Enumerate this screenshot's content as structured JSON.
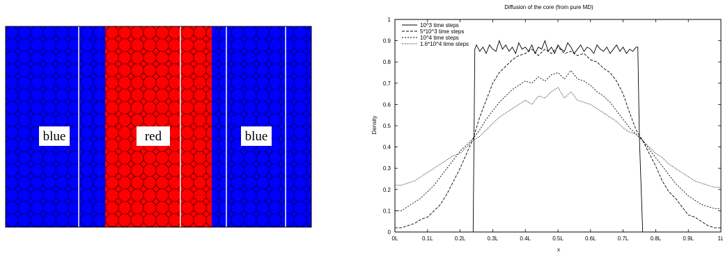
{
  "left_figure": {
    "regions": [
      {
        "label": "blue",
        "color": "#0000ff"
      },
      {
        "label": "red",
        "color": "#ff0000"
      },
      {
        "label": "blue",
        "color": "#0000ff"
      }
    ]
  },
  "chart_data": {
    "type": "line",
    "title": "Diffusion of the core (from pure MD)",
    "xlabel": "x",
    "ylabel": "Density",
    "xlim": [
      0,
      1
    ],
    "ylim": [
      0,
      1
    ],
    "x_ticks": [
      "0L",
      "0.1L",
      "0.2L",
      "0.3L",
      "0.4L",
      "0.5L",
      "0.6L",
      "0.7L",
      "0.8L",
      "0.9L",
      "1L"
    ],
    "y_ticks": [
      "0",
      "0.1",
      "0.2",
      "0.3",
      "0.4",
      "0.5",
      "0.6",
      "0.7",
      "0.8",
      "0.9",
      "1"
    ],
    "grid": false,
    "legend_position": "top-left",
    "series": [
      {
        "name": "10^3 time steps",
        "style": "solid",
        "x": [
          0,
          0.24,
          0.245,
          0.25,
          0.26,
          0.27,
          0.28,
          0.29,
          0.3,
          0.31,
          0.32,
          0.33,
          0.34,
          0.35,
          0.36,
          0.37,
          0.38,
          0.39,
          0.4,
          0.41,
          0.42,
          0.43,
          0.44,
          0.45,
          0.46,
          0.47,
          0.48,
          0.49,
          0.5,
          0.51,
          0.52,
          0.53,
          0.54,
          0.55,
          0.56,
          0.57,
          0.58,
          0.59,
          0.6,
          0.61,
          0.62,
          0.63,
          0.64,
          0.65,
          0.66,
          0.67,
          0.68,
          0.69,
          0.7,
          0.71,
          0.72,
          0.73,
          0.74,
          0.745,
          0.75,
          0.76,
          1.0
        ],
        "y": [
          0,
          0,
          0.86,
          0.88,
          0.85,
          0.87,
          0.84,
          0.88,
          0.86,
          0.85,
          0.9,
          0.86,
          0.88,
          0.85,
          0.87,
          0.84,
          0.89,
          0.86,
          0.87,
          0.85,
          0.88,
          0.84,
          0.87,
          0.86,
          0.9,
          0.85,
          0.87,
          0.84,
          0.88,
          0.86,
          0.85,
          0.89,
          0.87,
          0.84,
          0.86,
          0.88,
          0.85,
          0.87,
          0.86,
          0.84,
          0.88,
          0.86,
          0.85,
          0.87,
          0.84,
          0.86,
          0.88,
          0.85,
          0.87,
          0.84,
          0.86,
          0.85,
          0.87,
          0.87,
          0.44,
          0,
          0
        ]
      },
      {
        "name": "5*10^3 time steps",
        "style": "dashed",
        "x": [
          0,
          0.02,
          0.04,
          0.06,
          0.08,
          0.1,
          0.12,
          0.14,
          0.16,
          0.18,
          0.2,
          0.22,
          0.24,
          0.26,
          0.28,
          0.3,
          0.32,
          0.34,
          0.36,
          0.38,
          0.4,
          0.42,
          0.44,
          0.46,
          0.48,
          0.5,
          0.52,
          0.54,
          0.56,
          0.58,
          0.6,
          0.62,
          0.64,
          0.66,
          0.68,
          0.7,
          0.72,
          0.74,
          0.76,
          0.78,
          0.8,
          0.82,
          0.84,
          0.86,
          0.88,
          0.9,
          0.92,
          0.94,
          0.96,
          0.98,
          1.0
        ],
        "y": [
          0.02,
          0.02,
          0.03,
          0.04,
          0.06,
          0.07,
          0.1,
          0.13,
          0.18,
          0.24,
          0.3,
          0.37,
          0.44,
          0.54,
          0.62,
          0.7,
          0.75,
          0.78,
          0.81,
          0.83,
          0.84,
          0.86,
          0.83,
          0.86,
          0.84,
          0.87,
          0.84,
          0.85,
          0.83,
          0.84,
          0.81,
          0.8,
          0.77,
          0.75,
          0.71,
          0.65,
          0.56,
          0.48,
          0.43,
          0.37,
          0.31,
          0.24,
          0.19,
          0.16,
          0.12,
          0.08,
          0.07,
          0.05,
          0.03,
          0.02,
          0.02
        ]
      },
      {
        "name": "10^4 time steps",
        "style": "dotted",
        "x": [
          0,
          0.02,
          0.04,
          0.06,
          0.08,
          0.1,
          0.12,
          0.14,
          0.16,
          0.18,
          0.2,
          0.22,
          0.24,
          0.26,
          0.28,
          0.3,
          0.32,
          0.34,
          0.36,
          0.38,
          0.4,
          0.42,
          0.44,
          0.46,
          0.48,
          0.5,
          0.52,
          0.54,
          0.56,
          0.58,
          0.6,
          0.62,
          0.64,
          0.66,
          0.68,
          0.7,
          0.72,
          0.74,
          0.76,
          0.78,
          0.8,
          0.82,
          0.84,
          0.86,
          0.88,
          0.9,
          0.92,
          0.94,
          0.96,
          0.98,
          1.0
        ],
        "y": [
          0.1,
          0.1,
          0.12,
          0.14,
          0.16,
          0.19,
          0.22,
          0.26,
          0.3,
          0.34,
          0.38,
          0.41,
          0.44,
          0.48,
          0.53,
          0.57,
          0.61,
          0.64,
          0.67,
          0.69,
          0.71,
          0.7,
          0.73,
          0.71,
          0.74,
          0.75,
          0.72,
          0.76,
          0.72,
          0.71,
          0.69,
          0.66,
          0.64,
          0.61,
          0.57,
          0.53,
          0.49,
          0.46,
          0.43,
          0.39,
          0.35,
          0.31,
          0.27,
          0.23,
          0.2,
          0.17,
          0.15,
          0.13,
          0.12,
          0.11,
          0.11
        ]
      },
      {
        "name": "1.6*10^4 time steps",
        "style": "fine-dotted",
        "x": [
          0,
          0.02,
          0.04,
          0.06,
          0.08,
          0.1,
          0.12,
          0.14,
          0.16,
          0.18,
          0.2,
          0.22,
          0.24,
          0.26,
          0.28,
          0.3,
          0.32,
          0.34,
          0.36,
          0.38,
          0.4,
          0.42,
          0.44,
          0.46,
          0.48,
          0.5,
          0.52,
          0.54,
          0.56,
          0.58,
          0.6,
          0.62,
          0.64,
          0.66,
          0.68,
          0.7,
          0.72,
          0.74,
          0.76,
          0.78,
          0.8,
          0.82,
          0.84,
          0.86,
          0.88,
          0.9,
          0.92,
          0.94,
          0.96,
          0.98,
          1.0
        ],
        "y": [
          0.22,
          0.22,
          0.23,
          0.24,
          0.26,
          0.28,
          0.3,
          0.32,
          0.34,
          0.36,
          0.37,
          0.4,
          0.43,
          0.45,
          0.48,
          0.51,
          0.54,
          0.56,
          0.58,
          0.6,
          0.62,
          0.6,
          0.64,
          0.63,
          0.66,
          0.68,
          0.63,
          0.66,
          0.62,
          0.61,
          0.6,
          0.58,
          0.56,
          0.54,
          0.52,
          0.49,
          0.47,
          0.46,
          0.43,
          0.4,
          0.37,
          0.35,
          0.32,
          0.3,
          0.28,
          0.26,
          0.24,
          0.23,
          0.22,
          0.21,
          0.21
        ]
      }
    ]
  }
}
